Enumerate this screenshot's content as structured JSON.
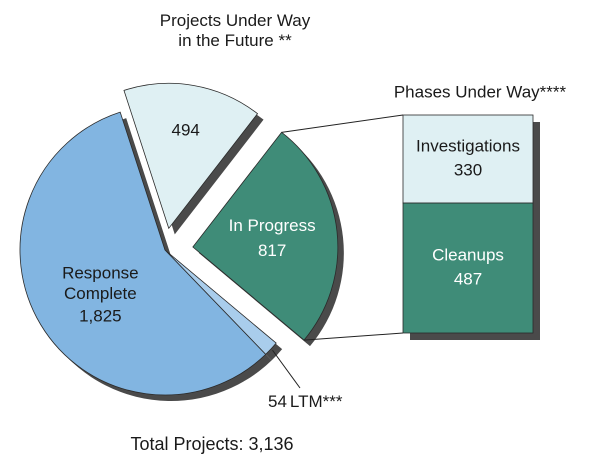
{
  "chart_data": {
    "type": "pie-of-bar",
    "title": "Total Projects: 3,136",
    "categories": [
      "Projects Under Way\nin the Future **",
      "In Progress",
      "LTM***",
      "Response\nComplete"
    ],
    "values": [
      494,
      817,
      54,
      1825
    ],
    "value_labels": [
      "494",
      "817",
      "54",
      "1,825"
    ],
    "colors": [
      "#dff0f3",
      "#3f8c78",
      "#a9cdec",
      "#82b5e1"
    ],
    "bar_title": "Phases Under Way****",
    "bar_categories": [
      "Investigations",
      "Cleanups"
    ],
    "bar_values": [
      330,
      487
    ],
    "bar_colors": [
      "#dff0f3",
      "#3f8c78"
    ]
  }
}
